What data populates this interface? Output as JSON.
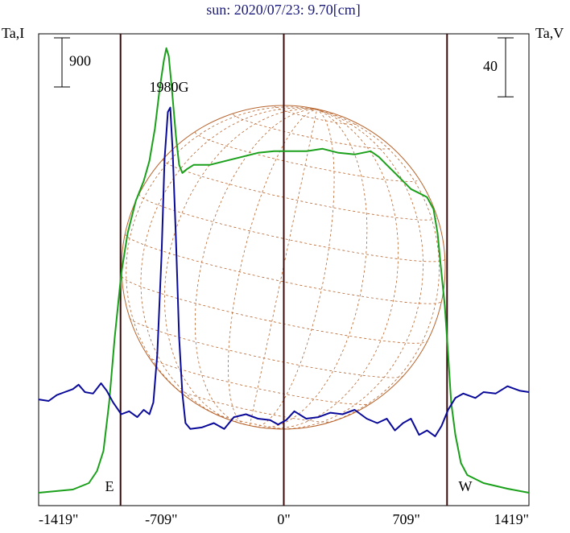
{
  "chart_data": {
    "type": "line",
    "title": "sun: 2020/07/23: 9.70[cm]",
    "y_label": "Ta,I",
    "y2_label": "Ta,V",
    "xlim": [
      -1419,
      1419
    ],
    "xticks": [
      {
        "value": -1419,
        "label": "-1419\""
      },
      {
        "value": -709,
        "label": "-709\""
      },
      {
        "value": 0,
        "label": "0\""
      },
      {
        "value": 709,
        "label": "709\""
      },
      {
        "value": 1419,
        "label": "1419\""
      }
    ],
    "ylim": [
      0,
      8640
    ],
    "y2lim": [
      0,
      320
    ],
    "vlines": [
      -945,
      0,
      945
    ],
    "vline_color": "#3a0a0a",
    "disk_color": "#b8652e",
    "scale_bars": [
      {
        "value": 900,
        "axis": "y"
      },
      {
        "value": 40,
        "axis": "y2"
      }
    ],
    "annotations": [
      "1980G",
      "E",
      "W"
    ],
    "series": [
      {
        "color": "#1aa01a",
        "x": [
          -1419,
          -1221,
          -1128,
          -1081,
          -1044,
          -1011,
          -979,
          -941,
          -904,
          -857,
          -811,
          -778,
          -746,
          -718,
          -694,
          -680,
          -666,
          -648,
          -624,
          -606,
          -587,
          -559,
          -522,
          -429,
          -336,
          -242,
          -149,
          -56,
          37,
          130,
          224,
          317,
          410,
          503,
          550,
          596,
          643,
          690,
          736,
          783,
          829,
          867,
          890,
          913,
          932,
          951,
          969,
          993,
          1025,
          1062,
          1156,
          1295,
          1419
        ],
        "values": [
          236,
          295,
          413,
          634,
          1003,
          1888,
          3068,
          4248,
          4986,
          5576,
          5944,
          6313,
          6903,
          7641,
          8157,
          8378,
          8231,
          7641,
          6756,
          6239,
          6092,
          6166,
          6239,
          6239,
          6313,
          6387,
          6461,
          6490,
          6490,
          6490,
          6534,
          6461,
          6431,
          6490,
          6387,
          6239,
          6092,
          5944,
          5797,
          5723,
          5649,
          5428,
          4986,
          4248,
          3658,
          2773,
          1888,
          1298,
          782,
          561,
          413,
          310,
          236
        ]
      },
      {
        "color": "#0a0a9a",
        "axis": "y2",
        "x": [
          -1419,
          -1361,
          -1314,
          -1268,
          -1221,
          -1188,
          -1151,
          -1104,
          -1058,
          -1025,
          -988,
          -941,
          -895,
          -848,
          -811,
          -778,
          -755,
          -732,
          -708,
          -690,
          -671,
          -657,
          -643,
          -624,
          -606,
          -587,
          -569,
          -541,
          -475,
          -405,
          -345,
          -289,
          -219,
          -149,
          -79,
          -33,
          14,
          61,
          130,
          200,
          270,
          340,
          410,
          480,
          541,
          596,
          643,
          690,
          736,
          783,
          829,
          876,
          913,
          951,
          993,
          1039,
          1109,
          1156,
          1226,
          1295,
          1365,
          1419
        ],
        "values": [
          72,
          71,
          75,
          77,
          79,
          82,
          77,
          76,
          83,
          78,
          70,
          62,
          64,
          60,
          65,
          62,
          70,
          103,
          169,
          235,
          267,
          270,
          240,
          180,
          114,
          76,
          56,
          52,
          53,
          56,
          52,
          60,
          62,
          59,
          58,
          55,
          58,
          64,
          59,
          60,
          63,
          62,
          65,
          59,
          56,
          59,
          51,
          56,
          59,
          48,
          51,
          47,
          54,
          65,
          73,
          76,
          73,
          77,
          76,
          81,
          78,
          77
        ]
      }
    ]
  }
}
